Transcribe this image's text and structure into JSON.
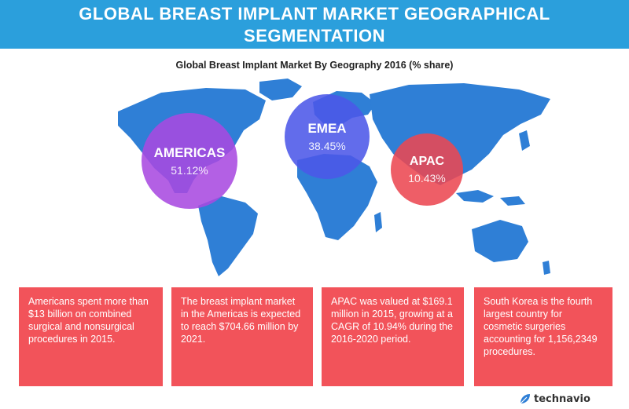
{
  "header": {
    "title_line1": "GLOBAL BREAST IMPLANT MARKET GEOGRAPHICAL",
    "title_line2": "SEGMENTATION"
  },
  "chart_data": {
    "type": "bubble-map",
    "title": "Global Breast Implant Market By Geography 2016 (% share)",
    "categories": [
      "AMERICAS",
      "EMEA",
      "APAC"
    ],
    "values": [
      51.12,
      38.45,
      10.43
    ],
    "value_labels": [
      "51.12%",
      "38.45%",
      "10.43%"
    ],
    "colors": [
      "#a84ae0",
      "#4c58e8",
      "#ec4852"
    ]
  },
  "info_boxes": [
    "Americans spent more than $13 billion on combined surgical and nonsurgical procedures in 2015.",
    "The breast implant market in the Americas is expected to reach $704.66 million by 2021.",
    "APAC was valued at $169.1 million in 2015, growing at a CAGR of 10.94% during the 2016-2020 period.",
    "South Korea is the fourth largest country for cosmetic surgeries accounting for 1,156,2349 procedures."
  ],
  "brand": {
    "logo_text": "technavio",
    "logo_icon": "technavio-leaf-icon"
  },
  "map_color": "#2f7fd6",
  "banner_color": "#2b9fdc",
  "box_color": "#f2535a"
}
